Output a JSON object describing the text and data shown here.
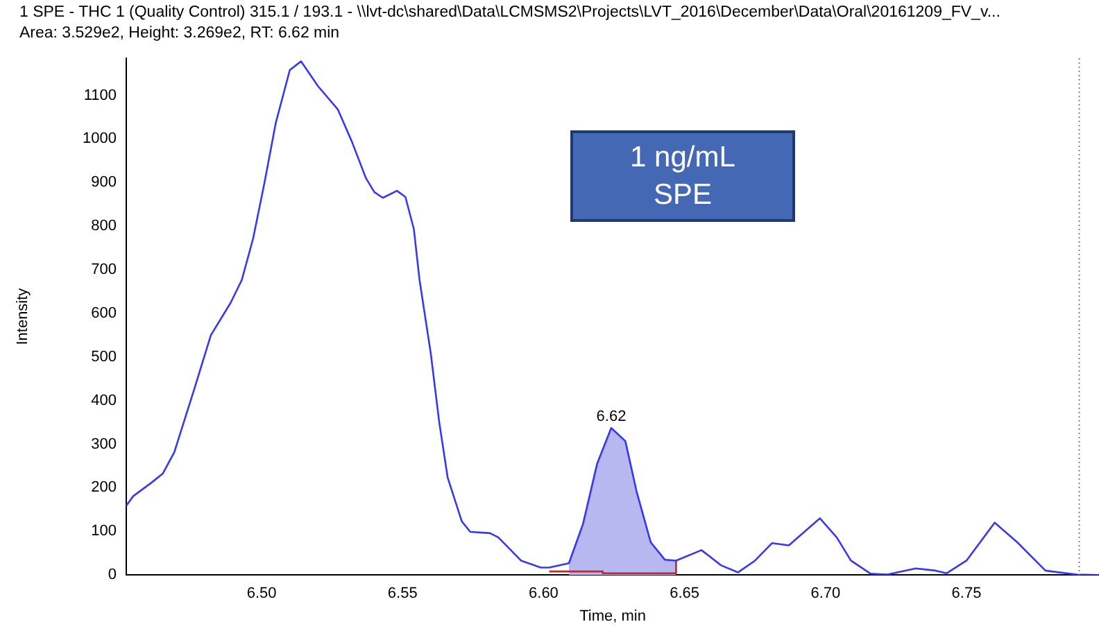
{
  "chart_data": {
    "type": "line",
    "title": "1 SPE - THC 1 (Quality Control) 315.1 / 193.1 - \\\\lvt-dc\\shared\\Data\\LCMSMS2\\Projects\\LVT_2016\\December\\Data\\Oral\\20161209_FV_v...",
    "subtitle": "Area: 3.529e2, Height: 3.269e2, RT: 6.62 min",
    "xlabel": "Time, min",
    "ylabel": "Intensity",
    "annotations": [
      "1 ng/mL\nSPE",
      {
        "text": "6.62",
        "x": 6.624,
        "y": 337
      }
    ],
    "xlim": [
      6.452,
      6.797
    ],
    "ylim": [
      0,
      1185
    ],
    "xticks": [
      {
        "value": 6.5,
        "label": "6.50"
      },
      {
        "value": 6.55,
        "label": "6.55"
      },
      {
        "value": 6.6,
        "label": "6.60"
      },
      {
        "value": 6.65,
        "label": "6.65"
      },
      {
        "value": 6.7,
        "label": "6.70"
      },
      {
        "value": 6.75,
        "label": "6.75"
      }
    ],
    "yticks": [
      0,
      100,
      200,
      300,
      400,
      500,
      600,
      700,
      800,
      900,
      1000,
      1100
    ],
    "grid": false,
    "legend": false,
    "marker": "none",
    "line_style": "solid",
    "ref_lines": [
      {
        "axis": "x",
        "value": 6.79,
        "color": "#808080",
        "line_style": "dotted"
      }
    ],
    "series": [
      {
        "type": "area",
        "color": "#b8b8f0",
        "x": [
          6.609,
          6.614,
          6.619,
          6.624,
          6.629,
          6.633,
          6.638,
          6.643,
          6.647
        ],
        "values": [
          27,
          117,
          255,
          337,
          307,
          191,
          75,
          35,
          33
        ]
      },
      {
        "type": "line",
        "color": "#d02020",
        "x": [
          6.602,
          6.621,
          6.621,
          6.647,
          6.647
        ],
        "values": [
          8,
          8,
          4,
          4,
          33
        ]
      },
      {
        "color": "#3838f0",
        "x": [
          6.452,
          6.4545,
          6.461,
          6.465,
          6.469,
          6.476,
          6.482,
          6.489,
          6.493,
          6.497,
          6.501,
          6.505,
          6.51,
          6.514,
          6.52,
          6.527,
          6.532,
          6.537,
          6.54,
          6.543,
          6.548,
          6.551,
          6.554,
          6.556,
          6.56,
          6.563,
          6.566,
          6.571,
          6.574,
          6.581,
          6.584,
          6.592,
          6.599,
          6.602,
          6.609,
          6.614,
          6.619,
          6.624,
          6.629,
          6.633,
          6.638,
          6.643,
          6.647,
          6.656,
          6.663,
          6.669,
          6.675,
          6.681,
          6.687,
          6.698,
          6.704,
          6.709,
          6.716,
          6.722,
          6.732,
          6.739,
          6.743,
          6.75,
          6.76,
          6.768,
          6.778,
          6.789,
          6.797
        ],
        "values": [
          159,
          181,
          212,
          233,
          281,
          424,
          550,
          624,
          677,
          772,
          899,
          1036,
          1158,
          1178,
          1121,
          1068,
          994,
          910,
          878,
          865,
          881,
          867,
          793,
          677,
          508,
          350,
          223,
          123,
          99,
          96,
          86,
          33,
          17,
          17,
          27,
          117,
          255,
          337,
          307,
          191,
          75,
          35,
          33,
          57,
          22,
          6,
          33,
          73,
          68,
          130,
          86,
          33,
          3,
          1,
          15,
          10,
          4,
          33,
          120,
          75,
          10,
          1,
          0
        ]
      }
    ]
  }
}
